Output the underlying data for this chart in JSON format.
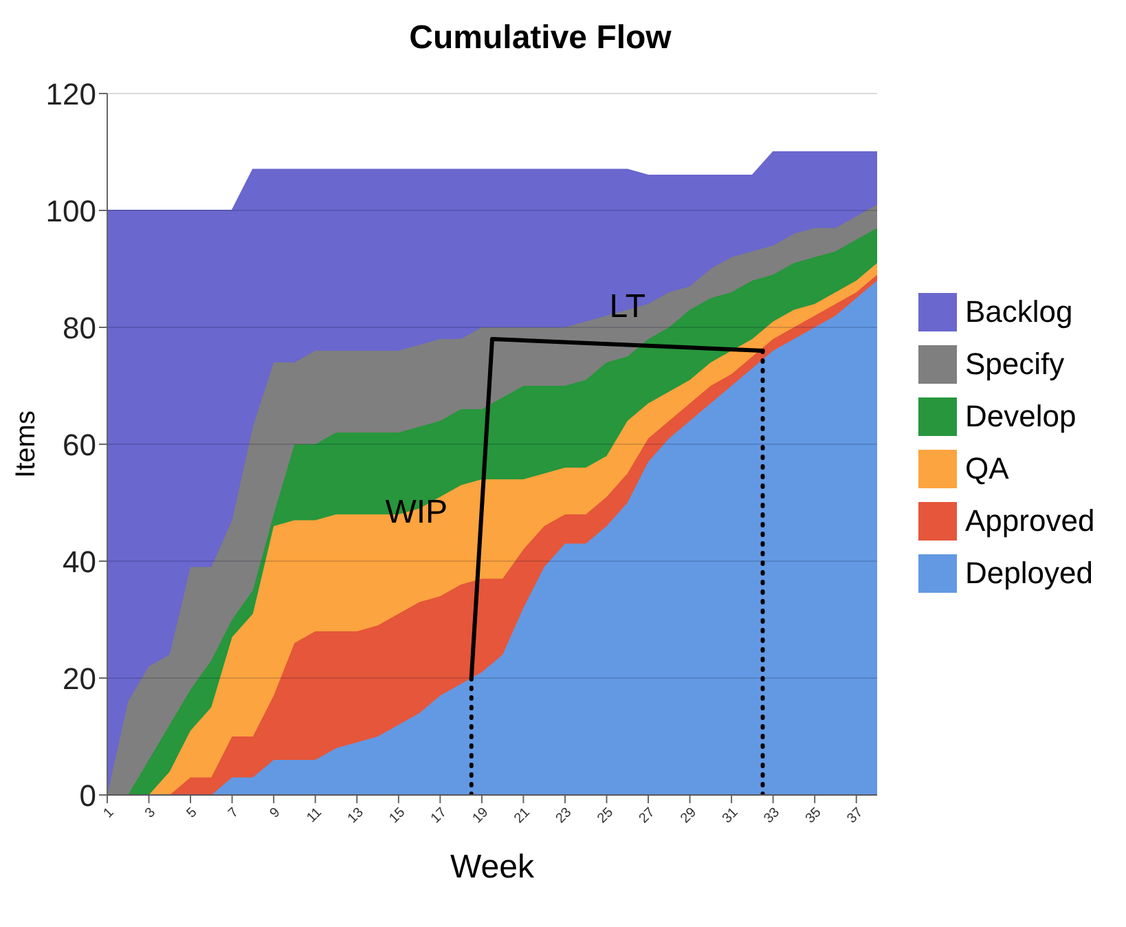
{
  "chart_data": {
    "type": "area",
    "stacked": true,
    "title": "Cumulative Flow",
    "xlabel": "Week",
    "ylabel": "Items",
    "x": [
      1,
      2,
      3,
      4,
      5,
      6,
      7,
      8,
      9,
      10,
      11,
      12,
      13,
      14,
      15,
      16,
      17,
      18,
      19,
      20,
      21,
      22,
      23,
      24,
      25,
      26,
      27,
      28,
      29,
      30,
      31,
      32,
      33,
      34,
      35,
      36,
      37,
      38
    ],
    "xlim": [
      1,
      38
    ],
    "xticks": [
      1,
      3,
      5,
      7,
      9,
      11,
      13,
      15,
      17,
      19,
      21,
      23,
      25,
      27,
      29,
      31,
      33,
      35,
      37
    ],
    "series": [
      {
        "name": "Deployed",
        "color": "#6399e3",
        "values": [
          0,
          0,
          0,
          0,
          0,
          0,
          3,
          3,
          6,
          6,
          6,
          8,
          9,
          10,
          12,
          14,
          17,
          19,
          21,
          24,
          32,
          39,
          43,
          43,
          46,
          50,
          57,
          61,
          64,
          67,
          70,
          73,
          76,
          78,
          80,
          82,
          85,
          88
        ]
      },
      {
        "name": "Approved",
        "color": "#e5563a",
        "values": [
          0,
          0,
          0,
          0,
          3,
          3,
          7,
          7,
          11,
          20,
          22,
          20,
          19,
          19,
          19,
          19,
          17,
          17,
          16,
          13,
          10,
          7,
          5,
          5,
          5,
          5,
          4,
          3,
          3,
          3,
          2,
          2,
          2,
          2,
          2,
          2,
          1,
          1
        ]
      },
      {
        "name": "QA",
        "color": "#fca43f",
        "values": [
          0,
          0,
          0,
          4,
          8,
          12,
          17,
          21,
          29,
          21,
          19,
          20,
          20,
          19,
          17,
          16,
          17,
          17,
          17,
          17,
          12,
          9,
          8,
          8,
          7,
          9,
          6,
          5,
          4,
          4,
          4,
          3,
          3,
          3,
          2,
          2,
          2,
          2
        ]
      },
      {
        "name": "Develop",
        "color": "#27963c",
        "values": [
          0,
          0,
          6,
          8,
          7,
          8,
          3,
          4,
          2,
          13,
          13,
          14,
          14,
          14,
          14,
          14,
          13,
          13,
          12,
          14,
          16,
          15,
          14,
          15,
          16,
          11,
          11,
          11,
          12,
          11,
          10,
          10,
          8,
          8,
          8,
          7,
          7,
          6
        ]
      },
      {
        "name": "Specify",
        "color": "#7f7f7f",
        "values": [
          0,
          16,
          16,
          12,
          21,
          16,
          17,
          28,
          26,
          14,
          16,
          14,
          14,
          14,
          14,
          14,
          14,
          12,
          14,
          12,
          10,
          10,
          10,
          10,
          8,
          8,
          6,
          6,
          4,
          5,
          6,
          5,
          5,
          5,
          5,
          4,
          4,
          4
        ]
      },
      {
        "name": "Backlog",
        "color": "#6a67ce",
        "values": [
          100,
          84,
          78,
          76,
          61,
          61,
          53,
          44,
          33,
          33,
          31,
          31,
          31,
          31,
          31,
          30,
          29,
          29,
          27,
          27,
          27,
          27,
          27,
          26,
          25,
          24,
          22,
          20,
          19,
          16,
          14,
          13,
          16,
          14,
          13,
          13,
          11,
          9
        ]
      },
      {
        "type": "line",
        "color": "#000000",
        "line_style": "solid",
        "x": [
          18.5,
          19.5,
          32.5
        ],
        "values": [
          20,
          78,
          76
        ]
      },
      {
        "type": "line",
        "color": "#000000",
        "line_style": "dotted",
        "x": [
          18.5,
          18.5
        ],
        "values": [
          0,
          20
        ]
      },
      {
        "type": "line",
        "color": "#000000",
        "line_style": "dotted",
        "x": [
          32.5,
          32.5
        ],
        "values": [
          0,
          76
        ]
      }
    ],
    "ylim": [
      0,
      120
    ],
    "yticks": [
      0,
      20,
      40,
      60,
      80,
      100,
      120
    ],
    "grid": "y",
    "legend": "right",
    "annotations": [
      "WIP",
      "LT"
    ]
  }
}
